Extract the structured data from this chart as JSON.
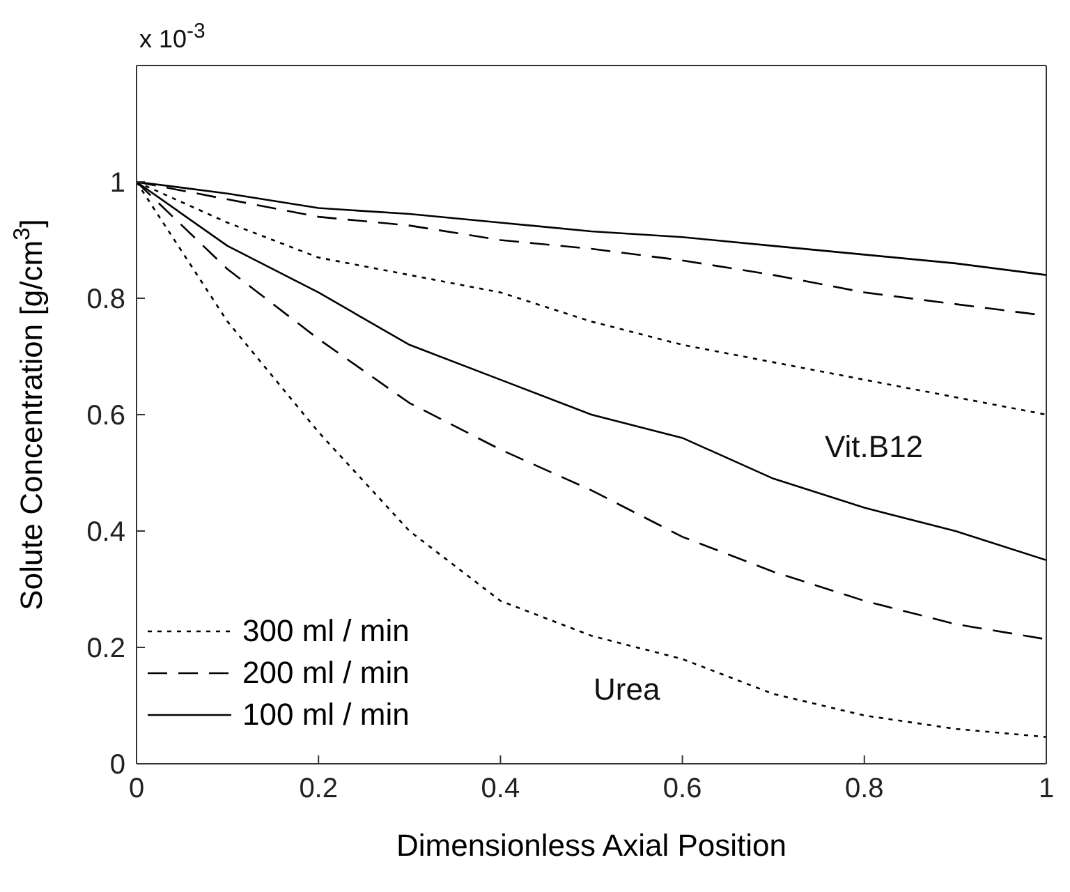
{
  "chart_data": {
    "type": "line",
    "xlabel": "Dimensionless Axial Position",
    "ylabel": "Solute Concentration [g/cm$^{3}$]",
    "x": [
      0,
      0.1,
      0.2,
      0.3,
      0.4,
      0.5,
      0.6,
      0.7,
      0.8,
      0.9,
      1
    ],
    "series": [
      {
        "name": "300 ml / min",
        "color": "#000000",
        "line_style": "dotted",
        "values": [
          1,
          0.76,
          0.57,
          0.4,
          0.28,
          0.22,
          0.18,
          0.12,
          0.083,
          0.06,
          0.046
        ]
      },
      {
        "name": "200 ml / min",
        "color": "#000000",
        "line_style": "dashed",
        "values": [
          1,
          0.85,
          0.73,
          0.62,
          0.54,
          0.47,
          0.39,
          0.33,
          0.28,
          0.24,
          0.214
        ]
      },
      {
        "name": "100 ml / min",
        "color": "#000000",
        "line_style": "solid",
        "values": [
          1,
          0.89,
          0.81,
          0.72,
          0.66,
          0.6,
          0.56,
          0.49,
          0.44,
          0.4,
          0.35
        ]
      },
      {
        "color": "#000000",
        "line_style": "dotted",
        "values": [
          1,
          0.93,
          0.87,
          0.84,
          0.81,
          0.76,
          0.72,
          0.69,
          0.66,
          0.63,
          0.6
        ]
      },
      {
        "color": "#000000",
        "line_style": "dashed",
        "values": [
          1,
          0.97,
          0.94,
          0.925,
          0.9,
          0.885,
          0.865,
          0.84,
          0.81,
          0.79,
          0.77
        ]
      },
      {
        "color": "#000000",
        "line_style": "solid",
        "values": [
          1,
          0.98,
          0.955,
          0.945,
          0.93,
          0.915,
          0.905,
          0.89,
          0.875,
          0.86,
          0.84
        ]
      }
    ],
    "xlim": [
      0,
      1
    ],
    "xticks": [
      0,
      0.2,
      0.4,
      0.6,
      0.8,
      1
    ],
    "ylim": [
      0,
      1.2
    ],
    "yticks": [
      0,
      0.2,
      0.4,
      0.6,
      0.8,
      1
    ],
    "annotations": [
      "x 10$^{-3}$",
      "Vit.B12",
      "Urea"
    ],
    "legend": "bottom left",
    "grid": false,
    "marker": "none"
  }
}
